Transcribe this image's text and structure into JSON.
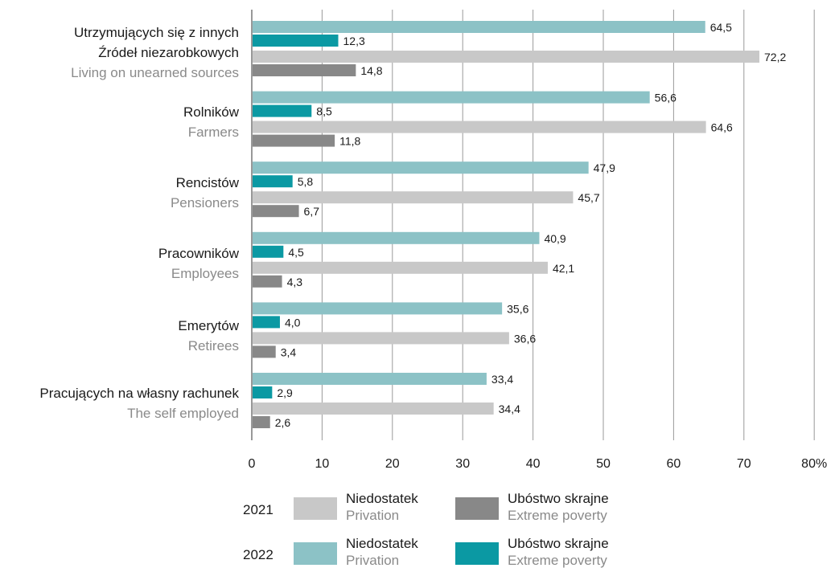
{
  "chart_data": {
    "type": "bar",
    "orientation": "horizontal",
    "xlim": [
      0,
      80
    ],
    "x_ticks": [
      "0",
      "10",
      "20",
      "30",
      "40",
      "50",
      "60",
      "70",
      "80%"
    ],
    "grid": "vertical",
    "categories": [
      {
        "pl": [
          "Utrzymujących się z innych",
          "Źródeł niezarobkowych"
        ],
        "en": "Living on unearned sources"
      },
      {
        "pl": [
          "Rolników"
        ],
        "en": "Farmers"
      },
      {
        "pl": [
          "Rencistów"
        ],
        "en": "Pensioners"
      },
      {
        "pl": [
          "Pracowników"
        ],
        "en": "Employees"
      },
      {
        "pl": [
          "Emerytów"
        ],
        "en": "Retirees"
      },
      {
        "pl": [
          "Pracujących na własny rachunek"
        ],
        "en": "The self employed"
      }
    ],
    "series": [
      {
        "year": "2022",
        "pl": "Niedostatek",
        "en": "Privation",
        "color": "#8cc2c6",
        "values": [
          64.5,
          56.6,
          47.9,
          40.9,
          35.6,
          33.4
        ],
        "labels": [
          "64,5",
          "56,6",
          "47,9",
          "40,9",
          "35,6",
          "33,4"
        ]
      },
      {
        "year": "2022",
        "pl": "Ubóstwo skrajne",
        "en": "Extreme poverty",
        "color": "#0b99a3",
        "values": [
          12.3,
          8.5,
          5.8,
          4.5,
          4.0,
          2.9
        ],
        "labels": [
          "12,3",
          "8,5",
          "5,8",
          "4,5",
          "4,0",
          "2,9"
        ]
      },
      {
        "year": "2021",
        "pl": "Niedostatek",
        "en": "Privation",
        "color": "#c8c8c8",
        "values": [
          72.2,
          64.6,
          45.7,
          42.1,
          36.6,
          34.4
        ],
        "labels": [
          "72,2",
          "64,6",
          "45,7",
          "42,1",
          "36,6",
          "34,4"
        ]
      },
      {
        "year": "2021",
        "pl": "Ubóstwo skrajne",
        "en": "Extreme poverty",
        "color": "#888888",
        "values": [
          14.8,
          11.8,
          6.7,
          4.3,
          3.4,
          2.6
        ],
        "labels": [
          "14,8",
          "11,8",
          "6,7",
          "4,3",
          "3,4",
          "2,6"
        ]
      }
    ],
    "legend": {
      "placement": "bottom",
      "rows": [
        {
          "year": "2021",
          "items": [
            {
              "pl": "Niedostatek",
              "en": "Privation",
              "color": "#c8c8c8"
            },
            {
              "pl": "Ubóstwo skrajne",
              "en": "Extreme poverty",
              "color": "#888888"
            }
          ]
        },
        {
          "year": "2022",
          "items": [
            {
              "pl": "Niedostatek",
              "en": "Privation",
              "color": "#8cc2c6"
            },
            {
              "pl": "Ubóstwo skrajne",
              "en": "Extreme poverty",
              "color": "#0b99a3"
            }
          ]
        }
      ]
    }
  }
}
